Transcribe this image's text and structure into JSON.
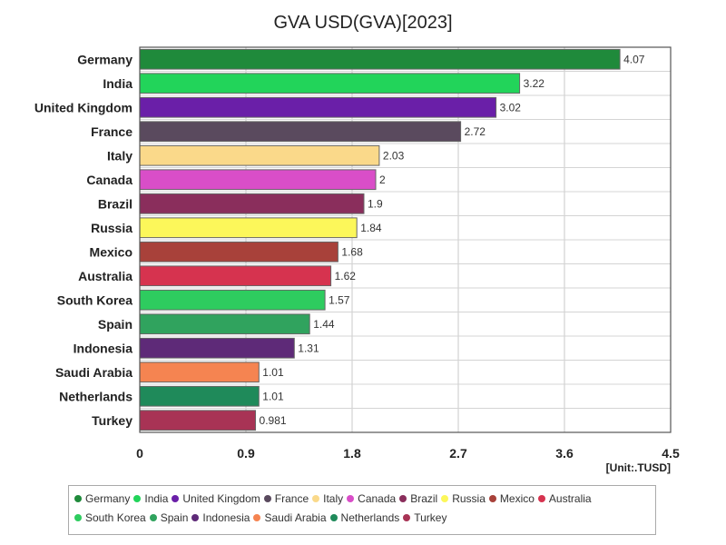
{
  "chart_data": {
    "type": "bar",
    "orientation": "horizontal",
    "title": "GVA USD(GVA)[2023]",
    "unit": "[Unit:.TUSD]",
    "xlim": [
      0,
      4.5
    ],
    "x_ticks": [
      "0",
      "0.9",
      "1.8",
      "2.7",
      "3.6",
      "4.5"
    ],
    "grid": true,
    "legend_position": "bottom",
    "categories": [
      "Germany",
      "India",
      "United Kingdom",
      "France",
      "Italy",
      "Canada",
      "Brazil",
      "Russia",
      "Mexico",
      "Australia",
      "South Korea",
      "Spain",
      "Indonesia",
      "Saudi Arabia",
      "Netherlands",
      "Turkey"
    ],
    "values": [
      4.07,
      3.22,
      3.02,
      2.72,
      2.03,
      2,
      1.9,
      1.84,
      1.68,
      1.62,
      1.57,
      1.44,
      1.31,
      1.01,
      1.01,
      0.981
    ],
    "value_labels": [
      "4.07",
      "3.22",
      "3.02",
      "2.72",
      "2.03",
      "2",
      "1.9",
      "1.84",
      "1.68",
      "1.62",
      "1.57",
      "1.44",
      "1.31",
      "1.01",
      "1.01",
      "0.981"
    ],
    "colors": [
      "#1f8a3b",
      "#22d45a",
      "#6a1fa8",
      "#5a4a5e",
      "#fad98a",
      "#d94ec8",
      "#8a2e5c",
      "#fcf75a",
      "#a8413a",
      "#d6334f",
      "#2ecc5f",
      "#30a35e",
      "#5e2a78",
      "#f58451",
      "#1f8a5a",
      "#a83355"
    ]
  }
}
